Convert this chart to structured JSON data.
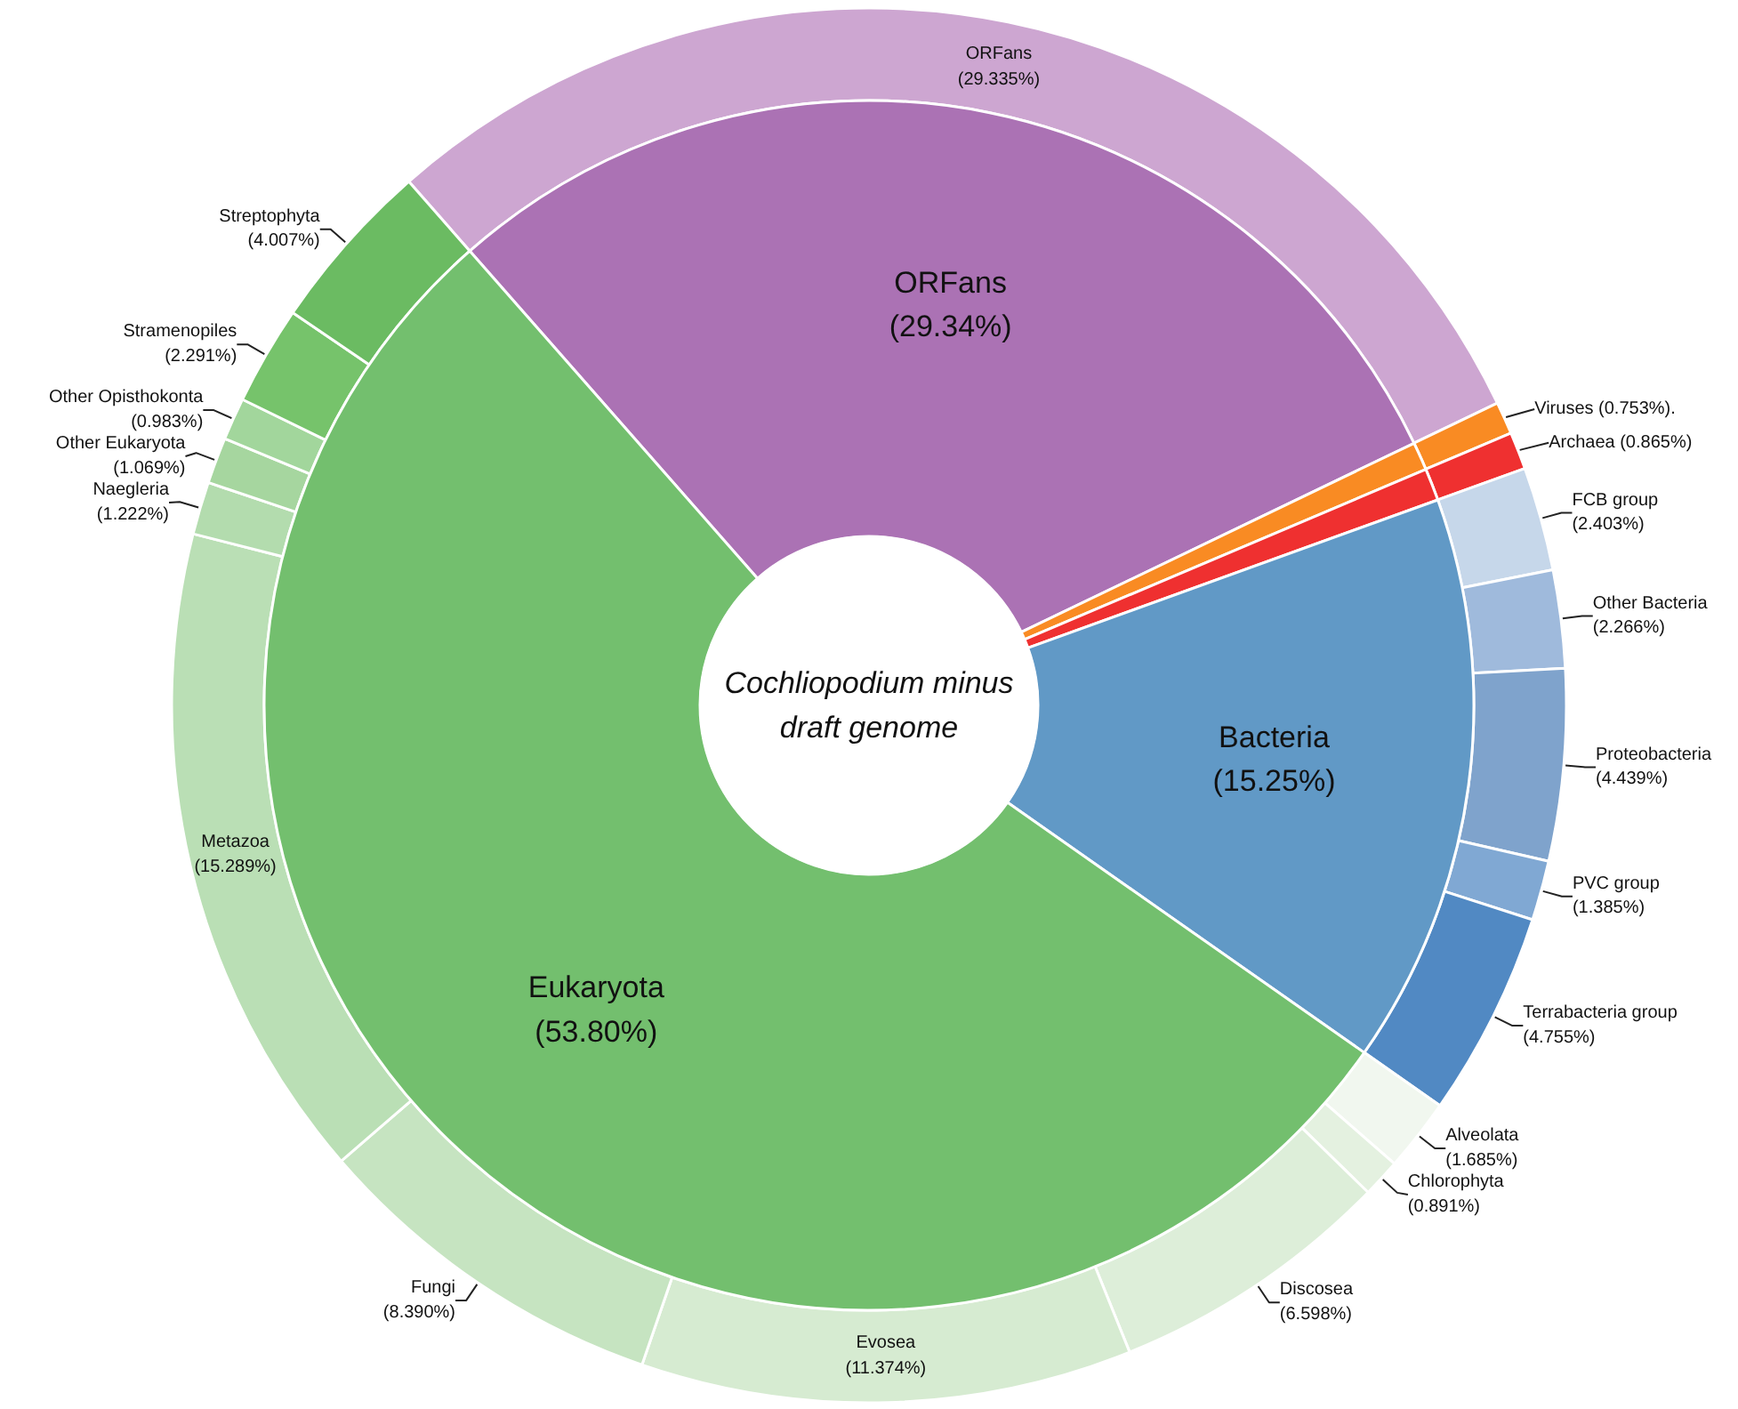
{
  "chart_data": {
    "type": "donut",
    "title": "Cochliopodium minus draft genome",
    "categories": [
      "ORFans",
      "Viruses",
      "Archaea",
      "FCB group",
      "Other Bacteria",
      "Proteobacteria",
      "PVC group",
      "Terrabacteria group",
      "Alveolata",
      "Chlorophyta",
      "Discosea",
      "Evosea",
      "Fungi",
      "Metazoa",
      "Naegleria",
      "Other Eukaryota",
      "Other Opisthokonta",
      "Stramenopiles",
      "Streptophyta"
    ],
    "series": [
      {
        "values": [
          29.335,
          0.753,
          0.865,
          2.403,
          2.266,
          4.439,
          1.385,
          4.755,
          1.685,
          0.891,
          6.598,
          11.374,
          8.39,
          15.289,
          1.222,
          1.069,
          0.983,
          2.291,
          4.007
        ],
        "colors": [
          "#cda6d1",
          "#f98b23",
          "#ef3030",
          "#c6d7ea",
          "#9fbadc",
          "#7fa3cc",
          "#80a8d3",
          "#5189c3",
          "#f1f7ef",
          "#e4f1e0",
          "#ddeed9",
          "#d6ebd1",
          "#c6e4c1",
          "#badfb5",
          "#b3dcae",
          "#a6d69f",
          "#a2d69c",
          "#76c36b",
          "#6bbb62"
        ],
        "value_labels": [
          "(29.335%)",
          "(0.753%).",
          "(0.865%)",
          "(2.403%)",
          "(2.266%)",
          "(4.439%)",
          "(1.385%)",
          "(4.755%)",
          "(1.685%)",
          "(0.891%)",
          "(6.598%)",
          "(11.374%)",
          "(8.390%)",
          "(15.289%)",
          "(1.222%)",
          "(1.069%)",
          "(0.983%)",
          "(2.291%)",
          "(4.007%)"
        ]
      },
      {
        "values": [
          29.34,
          0.753,
          0.865,
          15.25,
          null,
          null,
          null,
          null,
          53.8,
          null,
          null,
          null,
          null,
          null,
          null,
          null,
          null,
          null,
          null
        ],
        "colors": [
          "#ab72b4",
          "#f98b23",
          "#ef3030",
          "#6199c6",
          null,
          null,
          null,
          null,
          "#73bf6e",
          null,
          null,
          null,
          null,
          null,
          null,
          null,
          null,
          null,
          null
        ],
        "value_labels": [
          "ORFans (29.34%)",
          null,
          null,
          "Bacteria (15.25%)",
          null,
          null,
          null,
          null,
          "Eukaryota (53.80%)",
          null,
          null,
          null,
          null,
          null,
          null,
          null,
          null,
          null,
          null
        ]
      }
    ]
  }
}
